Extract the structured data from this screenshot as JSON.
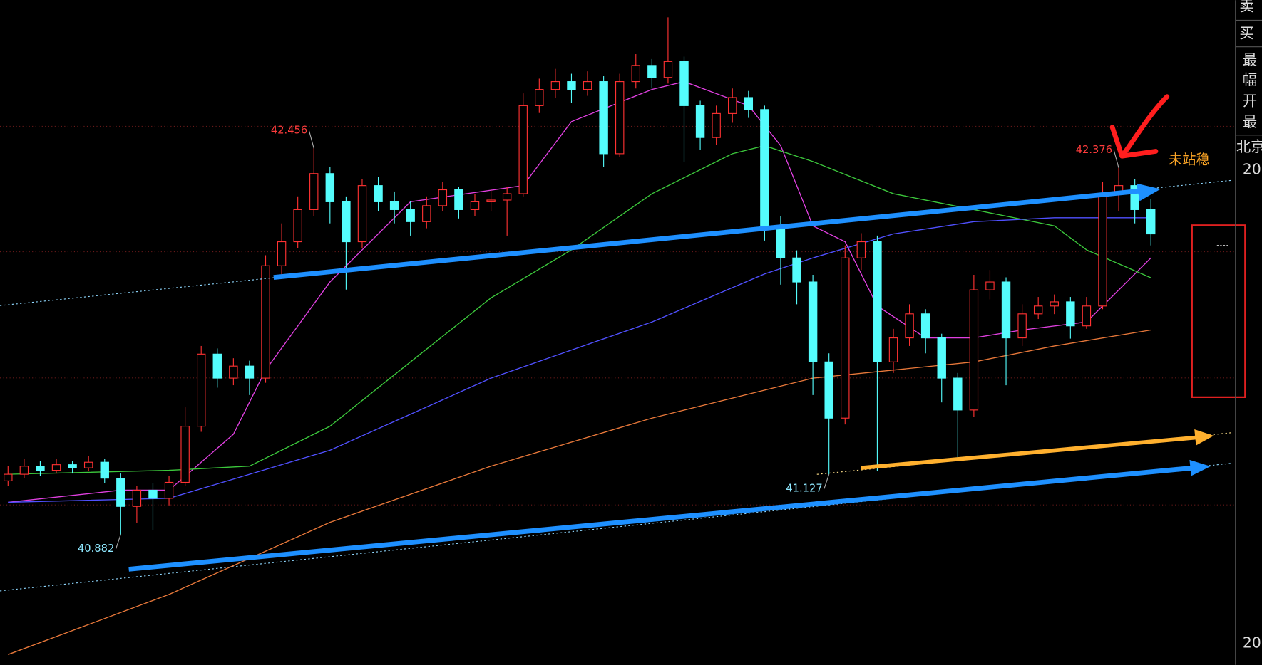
{
  "chart_data": {
    "type": "candlestick",
    "open": [
      41.1,
      41.127,
      41.16,
      41.143,
      41.166,
      41.153,
      41.176,
      41.111,
      40.996,
      41.062,
      41.029,
      41.094,
      41.323,
      41.617,
      41.519,
      41.568,
      41.519,
      41.977,
      42.075,
      42.206,
      42.353,
      42.238,
      42.075,
      42.304,
      42.238,
      42.206,
      42.157,
      42.222,
      42.287,
      42.206,
      42.238,
      42.245,
      42.271,
      42.63,
      42.696,
      42.728,
      42.696,
      42.728,
      42.434,
      42.728,
      42.794,
      42.745,
      42.81,
      42.63,
      42.5,
      42.598,
      42.663,
      42.614,
      42.14,
      42.009,
      41.911,
      41.585,
      41.356,
      42.009,
      42.075,
      41.585,
      41.683,
      41.781,
      41.683,
      41.519,
      41.389,
      41.879,
      41.911,
      41.683,
      41.781,
      41.813,
      41.83,
      41.732,
      41.813,
      42.271,
      42.304,
      42.206
    ],
    "high": [
      41.16,
      41.19,
      41.18,
      41.19,
      41.18,
      41.2,
      41.19,
      41.13,
      41.08,
      41.09,
      41.12,
      41.4,
      41.65,
      41.64,
      41.6,
      41.59,
      42.02,
      42.15,
      42.26,
      42.456,
      42.38,
      42.26,
      42.33,
      42.34,
      42.28,
      42.24,
      42.26,
      42.32,
      42.3,
      42.27,
      42.29,
      42.3,
      42.68,
      42.74,
      42.78,
      42.76,
      42.77,
      42.75,
      42.76,
      42.84,
      42.82,
      42.99,
      42.83,
      42.65,
      42.63,
      42.7,
      42.69,
      42.63,
      42.18,
      42.04,
      41.94,
      41.62,
      42.06,
      42.11,
      42.1,
      41.72,
      41.82,
      41.8,
      41.7,
      41.54,
      41.94,
      41.96,
      41.93,
      41.82,
      41.85,
      41.86,
      41.85,
      41.85,
      42.32,
      42.376,
      42.33,
      42.25
    ],
    "low": [
      41.08,
      41.11,
      41.12,
      41.13,
      41.13,
      41.14,
      41.09,
      40.882,
      40.93,
      40.9,
      41.0,
      41.08,
      41.3,
      41.48,
      41.49,
      41.45,
      41.5,
      41.94,
      42.05,
      42.18,
      42.15,
      41.88,
      42.05,
      42.2,
      42.15,
      42.1,
      42.13,
      42.2,
      42.17,
      42.18,
      42.2,
      42.1,
      42.26,
      42.6,
      42.66,
      42.64,
      42.67,
      42.38,
      42.42,
      42.7,
      42.7,
      42.72,
      42.4,
      42.45,
      42.47,
      42.56,
      42.58,
      42.08,
      41.9,
      41.82,
      41.45,
      41.127,
      41.33,
      41.96,
      41.14,
      41.54,
      41.65,
      41.62,
      41.42,
      41.18,
      41.36,
      41.84,
      41.49,
      41.65,
      41.76,
      41.78,
      41.68,
      41.72,
      41.8,
      42.2,
      42.15,
      42.06
    ],
    "close": [
      41.127,
      41.16,
      41.143,
      41.166,
      41.153,
      41.176,
      41.111,
      40.996,
      41.062,
      41.029,
      41.094,
      41.323,
      41.617,
      41.519,
      41.568,
      41.519,
      41.977,
      42.075,
      42.206,
      42.353,
      42.238,
      42.075,
      42.304,
      42.238,
      42.206,
      42.157,
      42.222,
      42.287,
      42.206,
      42.238,
      42.245,
      42.271,
      42.63,
      42.696,
      42.728,
      42.696,
      42.728,
      42.434,
      42.728,
      42.794,
      42.745,
      42.81,
      42.63,
      42.5,
      42.598,
      42.663,
      42.614,
      42.14,
      42.009,
      41.911,
      41.585,
      41.356,
      42.009,
      42.075,
      41.585,
      41.683,
      41.781,
      41.683,
      41.519,
      41.389,
      41.879,
      41.911,
      41.683,
      41.781,
      41.813,
      41.83,
      41.732,
      41.813,
      42.271,
      42.304,
      42.206,
      42.107
    ],
    "up_color": "#ff3232",
    "down_color": "#54fcfc",
    "ylim": [
      40.35,
      43.06
    ],
    "moving_averages": [
      {
        "color": "#e040e0",
        "x": [
          0,
          7,
          10,
          14,
          16,
          20,
          25,
          32,
          35,
          40,
          42,
          46,
          48,
          50,
          52,
          54,
          57,
          60,
          63,
          67,
          71
        ],
        "values": [
          41.013,
          41.062,
          41.062,
          41.29,
          41.552,
          41.911,
          42.238,
          42.304,
          42.565,
          42.696,
          42.728,
          42.63,
          42.467,
          42.14,
          42.075,
          41.813,
          41.683,
          41.683,
          41.715,
          41.748,
          42.009
        ]
      },
      {
        "color": "#3cc83c",
        "x": [
          0,
          10,
          15,
          20,
          25,
          30,
          35,
          40,
          45,
          47,
          50,
          55,
          60,
          65,
          67,
          71
        ],
        "values": [
          41.127,
          41.143,
          41.16,
          41.323,
          41.585,
          41.846,
          42.042,
          42.271,
          42.434,
          42.467,
          42.402,
          42.271,
          42.206,
          42.14,
          42.042,
          41.928
        ]
      },
      {
        "color": "#5050ff",
        "x": [
          0,
          10,
          20,
          30,
          40,
          47,
          50,
          55,
          60,
          65,
          71
        ],
        "values": [
          41.013,
          41.029,
          41.225,
          41.519,
          41.748,
          41.944,
          42.009,
          42.107,
          42.157,
          42.173,
          42.173
        ]
      },
      {
        "color": "#e8783a",
        "x": [
          0,
          10,
          20,
          30,
          40,
          50,
          60,
          65,
          71
        ],
        "values": [
          40.392,
          40.637,
          40.931,
          41.16,
          41.356,
          41.519,
          41.585,
          41.65,
          41.715
        ]
      }
    ]
  },
  "annotation": "未站稳",
  "quote_panel": {
    "labels": [
      "卖",
      "买",
      "最",
      "幅",
      "开",
      "最",
      "北京",
      "20",
      "20"
    ]
  }
}
